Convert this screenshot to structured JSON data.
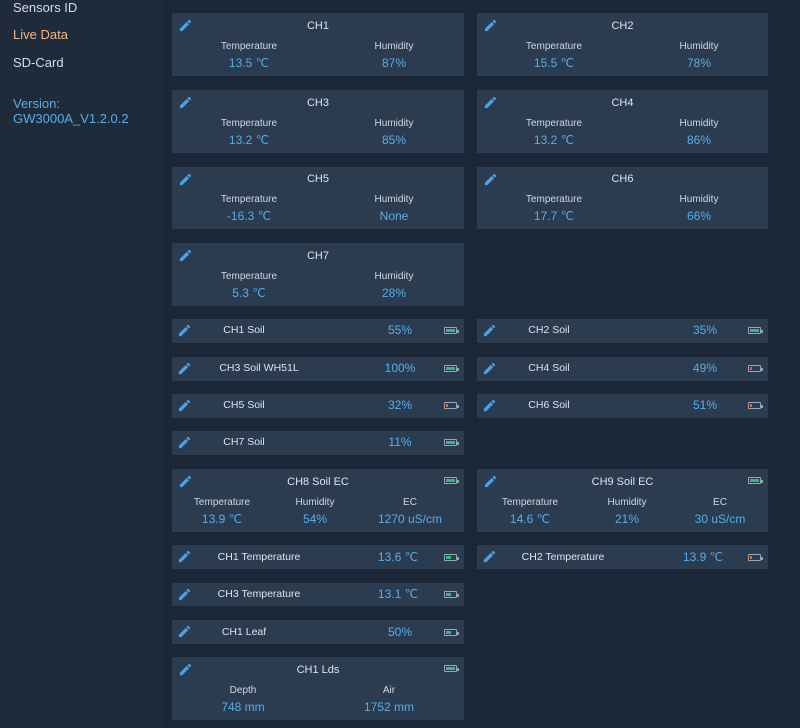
{
  "sidebar": {
    "items": [
      {
        "label": "Sensors ID",
        "active": false
      },
      {
        "label": "Live Data",
        "active": true
      },
      {
        "label": "SD-Card",
        "active": false
      }
    ],
    "version_label": "Version:",
    "version_value": "GW3000A_V1.2.0.2"
  },
  "colors": {
    "accent": "#59aee8",
    "active_nav": "#f1b87c",
    "battery_good": "#34b884",
    "battery_low": "#e0614f"
  },
  "th_cards": [
    {
      "title": "CH1",
      "temperature_label": "Temperature",
      "temperature": "13.5 ℃",
      "humidity_label": "Humidity",
      "humidity": "87%"
    },
    {
      "title": "CH2",
      "temperature_label": "Temperature",
      "temperature": "15.5 ℃",
      "humidity_label": "Humidity",
      "humidity": "78%"
    },
    {
      "title": "CH3",
      "temperature_label": "Temperature",
      "temperature": "13.2 ℃",
      "humidity_label": "Humidity",
      "humidity": "85%"
    },
    {
      "title": "CH4",
      "temperature_label": "Temperature",
      "temperature": "13.2 ℃",
      "humidity_label": "Humidity",
      "humidity": "86%"
    },
    {
      "title": "CH5",
      "temperature_label": "Temperature",
      "temperature": "-16.3 ℃",
      "humidity_label": "Humidity",
      "humidity": "None"
    },
    {
      "title": "CH6",
      "temperature_label": "Temperature",
      "temperature": "17.7 ℃",
      "humidity_label": "Humidity",
      "humidity": "66%"
    },
    {
      "title": "CH7",
      "temperature_label": "Temperature",
      "temperature": "5.3 ℃",
      "humidity_label": "Humidity",
      "humidity": "28%"
    }
  ],
  "soil_rows": [
    {
      "name": "CH1 Soil",
      "value": "55%",
      "battery": "good"
    },
    {
      "name": "CH2 Soil",
      "value": "35%",
      "battery": "good"
    },
    {
      "name": "CH3 Soil WH51L",
      "value": "100%",
      "battery": "good"
    },
    {
      "name": "CH4 Soil",
      "value": "49%",
      "battery": "low"
    },
    {
      "name": "CH5 Soil",
      "value": "32%",
      "battery": "low"
    },
    {
      "name": "CH6 Soil",
      "value": "51%",
      "battery": "low"
    },
    {
      "name": "CH7 Soil",
      "value": "11%",
      "battery": "good"
    }
  ],
  "ec_cards": [
    {
      "title": "CH8 Soil EC",
      "temperature_label": "Temperature",
      "temperature": "13.9 ℃",
      "humidity_label": "Humidity",
      "humidity": "54%",
      "ec_label": "EC",
      "ec": "1270 uS/cm",
      "battery": "good"
    },
    {
      "title": "CH9 Soil EC",
      "temperature_label": "Temperature",
      "temperature": "14.6 ℃",
      "humidity_label": "Humidity",
      "humidity": "21%",
      "ec_label": "EC",
      "ec": "30 uS/cm",
      "battery": "good"
    }
  ],
  "temp_rows": [
    {
      "name": "CH1 Temperature",
      "value": "13.6 ℃",
      "battery": "good"
    },
    {
      "name": "CH2 Temperature",
      "value": "13.9 ℃",
      "battery": "low"
    },
    {
      "name": "CH3 Temperature",
      "value": "13.1 ℃",
      "battery": "good"
    }
  ],
  "leaf_rows": [
    {
      "name": "CH1 Leaf",
      "value": "50%",
      "battery": "good"
    }
  ],
  "lds_card": {
    "title": "CH1 Lds",
    "depth_label": "Depth",
    "depth": "748 mm",
    "air_label": "Air",
    "air": "1752 mm",
    "battery": "good"
  }
}
